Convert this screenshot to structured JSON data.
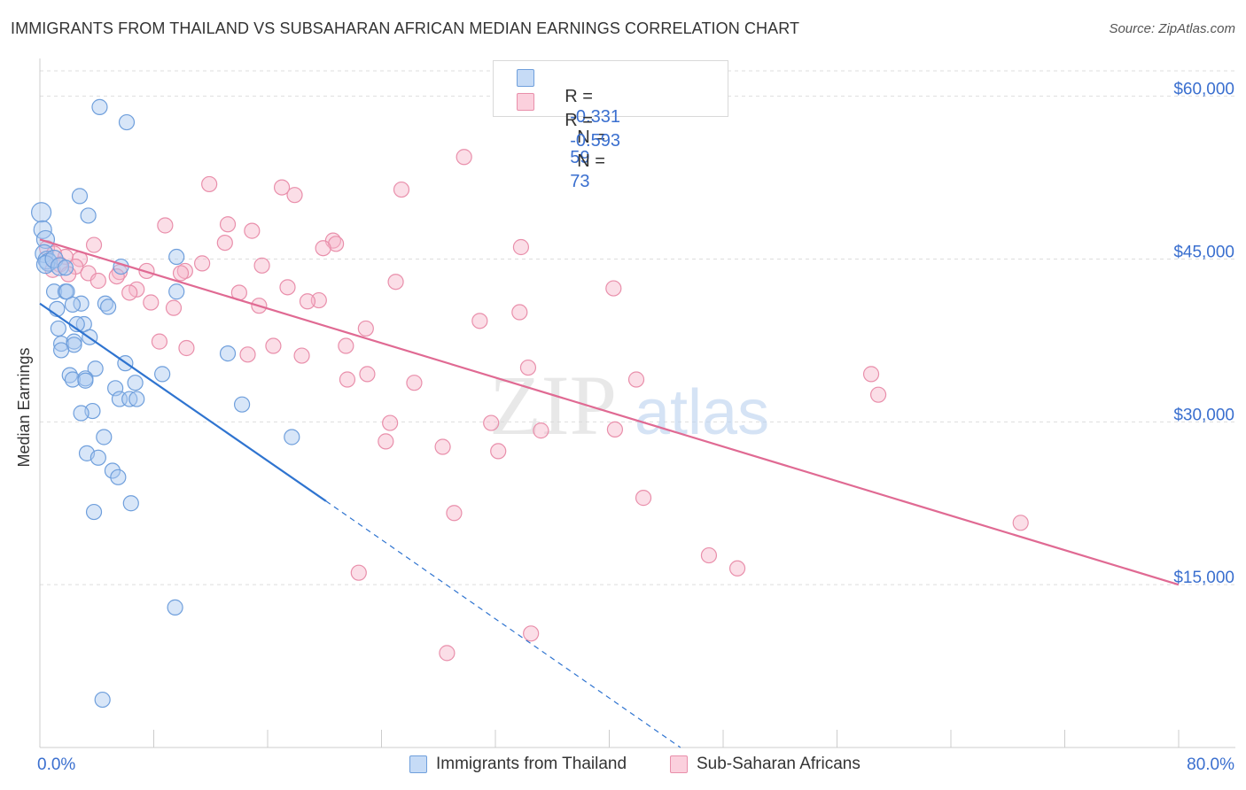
{
  "header": {
    "title": "IMMIGRANTS FROM THAILAND VS SUBSAHARAN AFRICAN MEDIAN EARNINGS CORRELATION CHART",
    "source": "Source: ZipAtlas.com"
  },
  "legend": {
    "rows": [
      {
        "r_label": "R =",
        "r_value": "-0.331",
        "n_label": "N =",
        "n_value": "59"
      },
      {
        "r_label": "R =",
        "r_value": "-0.593",
        "n_label": "N =",
        "n_value": "73"
      }
    ],
    "bottom": [
      "Immigrants from Thailand",
      "Sub-Saharan Africans"
    ]
  },
  "watermark": {
    "zip": "ZIP",
    "atlas": "atlas"
  },
  "colors": {
    "blue_fill": "#a9c7ef",
    "blue_stroke": "#6f9fdc",
    "blue_line": "#2f74d0",
    "pink_fill": "#f6b6c9",
    "pink_stroke": "#e98fab",
    "pink_line": "#e06a93",
    "tick_text": "#3a6fcf",
    "grid": "#dddddd"
  },
  "chart_data": {
    "type": "scatter",
    "title": "IMMIGRANTS FROM THAILAND VS SUBSAHARAN AFRICAN MEDIAN EARNINGS CORRELATION CHART",
    "xlabel": "",
    "ylabel": "Median Earnings",
    "xlim": [
      0,
      80
    ],
    "ylim": [
      0,
      62500
    ],
    "x_tick_labels": [
      "0.0%",
      "80.0%"
    ],
    "y_ticks": [
      15000,
      30000,
      45000,
      60000
    ],
    "y_tick_labels": [
      "$15,000",
      "$30,000",
      "$45,000",
      "$60,000"
    ],
    "grid": true,
    "legend_position": "top-center",
    "series": [
      {
        "name": "Immigrants from Thailand",
        "color": "#a9c7ef",
        "r": -0.331,
        "n": 59,
        "points": [
          [
            0.1,
            49300
          ],
          [
            0.2,
            47700
          ],
          [
            0.4,
            46800
          ],
          [
            0.3,
            45500
          ],
          [
            0.5,
            44900
          ],
          [
            0.6,
            44700
          ],
          [
            0.4,
            44500
          ],
          [
            1.0,
            45000
          ],
          [
            1.4,
            44300
          ],
          [
            4.2,
            59000
          ],
          [
            6.1,
            57600
          ],
          [
            2.8,
            50800
          ],
          [
            3.4,
            49000
          ],
          [
            5.7,
            44300
          ],
          [
            1.8,
            44200
          ],
          [
            9.6,
            45200
          ],
          [
            1.0,
            42000
          ],
          [
            1.8,
            42000
          ],
          [
            1.9,
            42000
          ],
          [
            9.6,
            42000
          ],
          [
            2.9,
            40900
          ],
          [
            1.2,
            40400
          ],
          [
            2.3,
            40800
          ],
          [
            4.6,
            40900
          ],
          [
            4.8,
            40600
          ],
          [
            1.3,
            38600
          ],
          [
            3.1,
            39000
          ],
          [
            2.6,
            39000
          ],
          [
            3.5,
            37800
          ],
          [
            1.5,
            37200
          ],
          [
            2.4,
            37400
          ],
          [
            2.4,
            37100
          ],
          [
            1.5,
            36600
          ],
          [
            13.2,
            36300
          ],
          [
            6.0,
            35400
          ],
          [
            3.9,
            34900
          ],
          [
            8.6,
            34400
          ],
          [
            2.1,
            34300
          ],
          [
            2.3,
            33900
          ],
          [
            3.2,
            34000
          ],
          [
            3.2,
            33800
          ],
          [
            6.7,
            33600
          ],
          [
            5.3,
            33100
          ],
          [
            14.2,
            31600
          ],
          [
            5.6,
            32100
          ],
          [
            6.3,
            32100
          ],
          [
            6.8,
            32100
          ],
          [
            3.7,
            31000
          ],
          [
            2.9,
            30800
          ],
          [
            4.5,
            28600
          ],
          [
            17.7,
            28600
          ],
          [
            3.3,
            27100
          ],
          [
            4.1,
            26700
          ],
          [
            5.1,
            25500
          ],
          [
            5.5,
            24900
          ],
          [
            6.4,
            22500
          ],
          [
            3.8,
            21700
          ],
          [
            9.5,
            12900
          ],
          [
            4.4,
            4400
          ]
        ]
      },
      {
        "name": "Sub-Saharan Africans",
        "color": "#f6b6c9",
        "r": -0.593,
        "n": 73,
        "points": [
          [
            0.5,
            46000
          ],
          [
            1.0,
            45500
          ],
          [
            1.8,
            45200
          ],
          [
            2.8,
            45000
          ],
          [
            1.4,
            44500
          ],
          [
            2.5,
            44300
          ],
          [
            0.9,
            44000
          ],
          [
            3.4,
            43700
          ],
          [
            2.0,
            43600
          ],
          [
            29.8,
            54400
          ],
          [
            11.9,
            51900
          ],
          [
            17.0,
            51600
          ],
          [
            17.9,
            50900
          ],
          [
            25.4,
            51400
          ],
          [
            8.8,
            48100
          ],
          [
            13.2,
            48200
          ],
          [
            14.9,
            47600
          ],
          [
            20.6,
            46700
          ],
          [
            20.8,
            46400
          ],
          [
            19.9,
            46000
          ],
          [
            33.8,
            46100
          ],
          [
            13.0,
            46500
          ],
          [
            3.8,
            46300
          ],
          [
            11.4,
            44600
          ],
          [
            15.6,
            44400
          ],
          [
            10.2,
            43900
          ],
          [
            7.5,
            43900
          ],
          [
            5.6,
            43800
          ],
          [
            9.9,
            43700
          ],
          [
            5.4,
            43400
          ],
          [
            4.1,
            43000
          ],
          [
            25.0,
            42900
          ],
          [
            17.4,
            42400
          ],
          [
            40.3,
            42300
          ],
          [
            6.8,
            42200
          ],
          [
            6.3,
            41900
          ],
          [
            14.0,
            41900
          ],
          [
            19.6,
            41200
          ],
          [
            18.8,
            41100
          ],
          [
            7.8,
            41000
          ],
          [
            15.4,
            40700
          ],
          [
            9.4,
            40500
          ],
          [
            33.7,
            40100
          ],
          [
            30.9,
            39300
          ],
          [
            22.9,
            38600
          ],
          [
            8.4,
            37400
          ],
          [
            16.4,
            37000
          ],
          [
            21.5,
            37000
          ],
          [
            10.3,
            36800
          ],
          [
            14.6,
            36200
          ],
          [
            18.4,
            36100
          ],
          [
            34.3,
            35000
          ],
          [
            23.0,
            34400
          ],
          [
            21.6,
            33900
          ],
          [
            26.3,
            33600
          ],
          [
            41.9,
            33900
          ],
          [
            58.4,
            34400
          ],
          [
            58.9,
            32500
          ],
          [
            24.6,
            29900
          ],
          [
            31.7,
            29900
          ],
          [
            35.2,
            29200
          ],
          [
            40.4,
            29300
          ],
          [
            24.3,
            28200
          ],
          [
            28.3,
            27700
          ],
          [
            32.2,
            27300
          ],
          [
            42.4,
            23000
          ],
          [
            29.1,
            21600
          ],
          [
            68.9,
            20700
          ],
          [
            47.0,
            17700
          ],
          [
            49.0,
            16500
          ],
          [
            22.4,
            16100
          ],
          [
            34.5,
            10500
          ],
          [
            28.6,
            8700
          ]
        ]
      }
    ],
    "trend_lines": [
      {
        "series": "Immigrants from Thailand",
        "x": [
          0,
          20.1
        ],
        "y": [
          40900,
          22700
        ],
        "dashed_extension_to": [
          45,
          0
        ]
      },
      {
        "series": "Sub-Saharan Africans",
        "x": [
          0,
          80
        ],
        "y": [
          46800,
          15000
        ]
      }
    ]
  }
}
